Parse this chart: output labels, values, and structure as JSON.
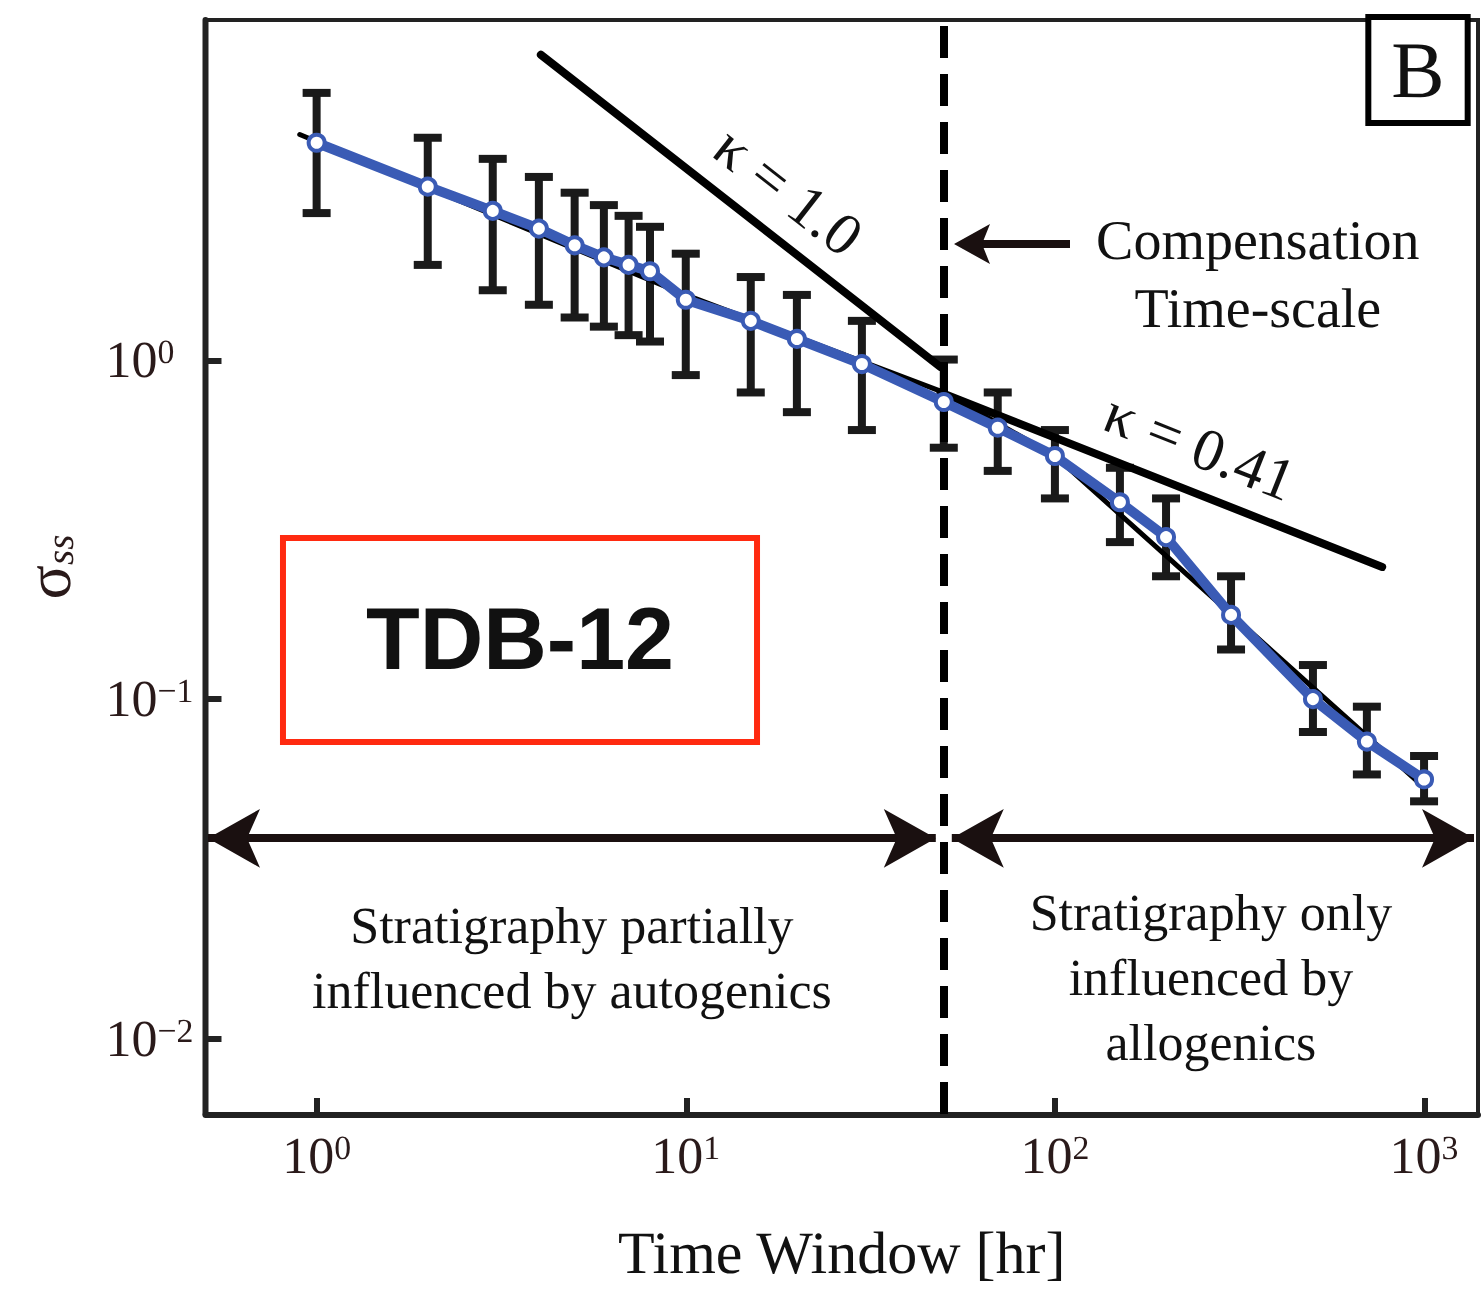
{
  "chart_data": {
    "type": "line",
    "xlabel": "Time Window [hr]",
    "ylabel": "σ$_{ss}$",
    "log": "xy",
    "xlim": [
      0.5,
      1400
    ],
    "ylim": [
      0.006,
      10
    ],
    "xticks": [
      {
        "value": 1,
        "label": "10$^{0}$"
      },
      {
        "value": 10,
        "label": "10$^{1}$"
      },
      {
        "value": 100,
        "label": "10$^{2}$"
      },
      {
        "value": 1000,
        "label": "10$^{3}$"
      }
    ],
    "yticks": [
      {
        "value": 0.01,
        "label": "10$^{−2}$"
      },
      {
        "value": 0.1,
        "label": "10$^{−1}$"
      },
      {
        "value": 1,
        "label": "10$^{0}$"
      }
    ],
    "grid": false,
    "legend": false,
    "marker": "circle",
    "series": [
      {
        "color": "#3a5bb5",
        "x": [
          1,
          2,
          3,
          4,
          5,
          6,
          7,
          8,
          10,
          15,
          20,
          30,
          50,
          70,
          100,
          150,
          200,
          300,
          500,
          700,
          1000
        ],
        "values": [
          4.35,
          3.23,
          2.74,
          2.43,
          2.17,
          2.0,
          1.9,
          1.82,
          1.5,
          1.3,
          1.15,
          0.97,
          0.75,
          0.63,
          0.52,
          0.38,
          0.3,
          0.177,
          0.1,
          0.075,
          0.058
        ],
        "errors": [
          [
            2.7,
            6.1
          ],
          [
            1.9,
            4.5
          ],
          [
            1.6,
            3.9
          ],
          [
            1.45,
            3.45
          ],
          [
            1.33,
            3.1
          ],
          [
            1.25,
            2.85
          ],
          [
            1.18,
            2.65
          ],
          [
            1.13,
            2.46
          ],
          [
            0.9,
            2.05
          ],
          [
            0.8,
            1.75
          ],
          [
            0.7,
            1.55
          ],
          [
            0.62,
            1.3
          ],
          [
            0.55,
            1.0
          ],
          [
            0.47,
            0.8
          ],
          [
            0.39,
            0.62
          ],
          [
            0.29,
            0.48
          ],
          [
            0.23,
            0.39
          ],
          [
            0.14,
            0.23
          ],
          [
            0.08,
            0.126
          ],
          [
            0.06,
            0.095
          ],
          [
            0.05,
            0.068
          ]
        ]
      },
      {
        "color": "#000000",
        "marker": "none",
        "x": [
          0.9,
          10,
          50,
          100,
          1000
        ],
        "values": [
          4.6,
          1.55,
          0.8,
          0.52,
          0.055
        ]
      },
      {
        "name": "κ = 1.0",
        "color": "#000000",
        "marker": "none",
        "x": [
          4.05,
          49
        ],
        "values": [
          7.9,
          0.95
        ]
      },
      {
        "name": "κ = 0.41",
        "color": "#000000",
        "marker": "none",
        "x": [
          49,
          770
        ],
        "values": [
          0.8,
          0.245
        ]
      }
    ],
    "ref_lines": [
      {
        "axis": "x",
        "value": 50,
        "label": "Compensation Time-scale",
        "color": "#000000",
        "line_style": "dashed"
      }
    ],
    "annotations": [
      "B",
      "TDB-12",
      "Stratigraphy partially influenced by autogenics",
      "Stratigraphy only influenced by allogenics"
    ]
  }
}
